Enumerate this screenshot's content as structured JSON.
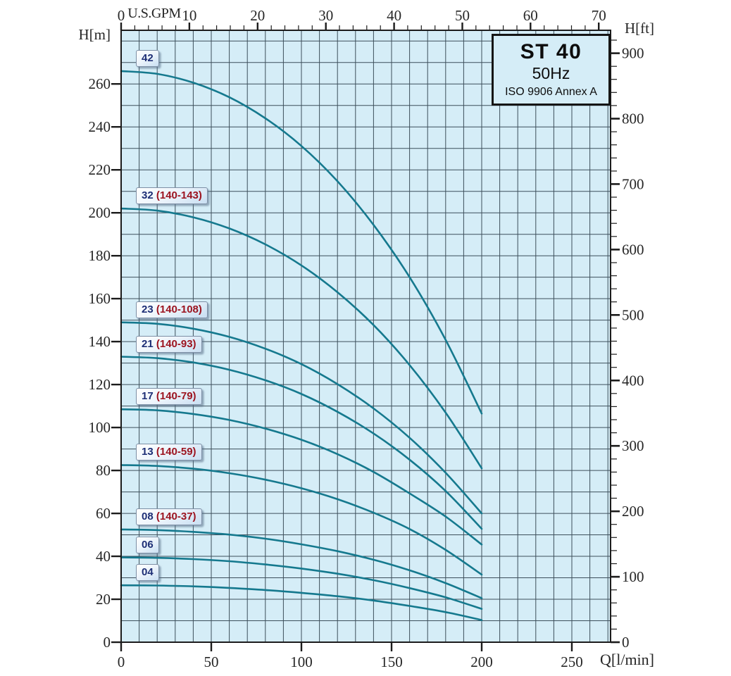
{
  "chart_data": {
    "type": "line",
    "title": "ST 40",
    "frequency": "50Hz",
    "standard": "ISO 9906 Annex A",
    "x_axis_bottom": {
      "label": "Q[l/min]",
      "min": 0,
      "max": 271.5,
      "major_ticks": [
        0,
        50,
        100,
        150,
        200,
        250
      ],
      "grid_step": 10
    },
    "x_axis_top": {
      "label": "U.S.GPM",
      "major_tick_step": 10,
      "max_label": 70,
      "minor_tick_step": 2,
      "lmin_per_gpm": 3.785
    },
    "y_axis_left": {
      "label": "H[m]",
      "min": 0,
      "max": 285,
      "major_tick_step": 20,
      "max_label": 260,
      "grid_step": 10
    },
    "y_axis_right": {
      "label": "H[ft]",
      "major_tick_step": 100,
      "max_label": 900,
      "minor_tick_step": 20,
      "ft_per_m": 3.28084
    },
    "legend_position": "none",
    "grid": true,
    "q_values": [
      0,
      20,
      40,
      60,
      80,
      100,
      120,
      140,
      160,
      180,
      200
    ],
    "series": [
      {
        "label": "42",
        "range": "",
        "heads_m": [
          266,
          264.7,
          260.6,
          253.8,
          244.0,
          231.1,
          214.7,
          194.4,
          170.0,
          140.8,
          106.5
        ]
      },
      {
        "label": "32",
        "range": "(140-143)",
        "heads_m": [
          202,
          201.0,
          197.9,
          192.7,
          185.3,
          175.5,
          163.0,
          147.7,
          129.1,
          106.9,
          81.0
        ]
      },
      {
        "label": "23",
        "range": "(140-108)",
        "heads_m": [
          149,
          148.3,
          146.0,
          142.2,
          136.7,
          129.5,
          120.2,
          108.9,
          95.2,
          78.9,
          60.0
        ]
      },
      {
        "label": "21",
        "range": "(140-93)",
        "heads_m": [
          133,
          132.3,
          130.3,
          126.9,
          122.0,
          115.6,
          107.3,
          97.2,
          85.0,
          70.4,
          52.8
        ]
      },
      {
        "label": "17",
        "range": "(140-79)",
        "heads_m": [
          108.5,
          108.0,
          106.3,
          103.5,
          99.5,
          94.3,
          87.6,
          79.3,
          69.3,
          58.5,
          45.5
        ]
      },
      {
        "label": "13",
        "range": "(140-59)",
        "heads_m": [
          82.5,
          82.1,
          80.8,
          78.7,
          75.7,
          71.7,
          66.6,
          60.3,
          52.7,
          43.0,
          31.5
        ]
      },
      {
        "label": "08",
        "range": "(140-37)",
        "heads_m": [
          52.5,
          52.2,
          51.4,
          50.1,
          48.2,
          45.6,
          42.4,
          38.4,
          33.5,
          27.5,
          20.5
        ]
      },
      {
        "label": "06",
        "range": "",
        "heads_m": [
          39.5,
          39.3,
          38.7,
          37.7,
          36.2,
          34.3,
          31.9,
          28.9,
          25.2,
          20.9,
          15.5
        ]
      },
      {
        "label": "04",
        "range": "",
        "heads_m": [
          26.5,
          26.4,
          26.0,
          25.3,
          24.3,
          23.0,
          21.4,
          19.4,
          16.9,
          14.0,
          10.3
        ]
      }
    ]
  },
  "colors": {
    "plot_background": "#d5edf7",
    "grid": "#3d4f5b",
    "curve": "#15798e",
    "axis": "#1c1c1c",
    "tick_label": "#262626",
    "badge_number": "#1d2e75",
    "badge_range": "#9c1420"
  }
}
